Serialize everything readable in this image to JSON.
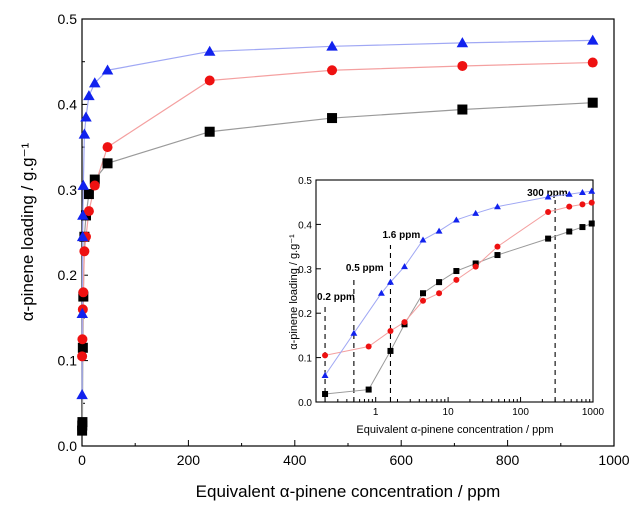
{
  "colors": {
    "black": "#000000",
    "red": "#ee1111",
    "blue": "#1122ee",
    "black_line": "#9a9a9a",
    "red_line": "#f4a0a0",
    "blue_line": "#a0a8f4"
  },
  "chart_data": [
    {
      "type": "scatter",
      "xlabel": "Equivalent α-pinene concentration / ppm",
      "ylabel": "α-pinene loading / g.g⁻¹",
      "xlim": [
        0,
        1000
      ],
      "ylim": [
        0,
        0.5
      ],
      "x_ticks": [
        "0",
        "200",
        "400",
        "600",
        "800",
        "1000"
      ],
      "y_ticks": [
        "0.0",
        "0.1",
        "0.2",
        "0.3",
        "0.4",
        "0.5"
      ],
      "series": [
        {
          "marker": "square",
          "color": "black",
          "x": [
            0.2,
            0.5,
            0.8,
            1.6,
            2.5,
            4.5,
            7.5,
            13,
            24,
            48,
            240,
            470,
            715,
            960
          ],
          "y": [
            0.018,
            0.024,
            0.028,
            0.115,
            0.175,
            0.245,
            0.27,
            0.295,
            0.312,
            0.331,
            0.368,
            0.384,
            0.394,
            0.402
          ]
        },
        {
          "marker": "circle",
          "color": "red",
          "x": [
            0.2,
            0.8,
            1.6,
            2.5,
            4.5,
            7.5,
            13,
            24,
            48,
            240,
            470,
            715,
            960
          ],
          "y": [
            0.105,
            0.125,
            0.16,
            0.18,
            0.228,
            0.245,
            0.275,
            0.305,
            0.35,
            0.428,
            0.44,
            0.445,
            0.449
          ]
        },
        {
          "marker": "triangle",
          "color": "blue",
          "x": [
            0.2,
            0.5,
            1.2,
            1.6,
            2.5,
            4.5,
            7.5,
            13,
            24,
            48,
            240,
            470,
            715,
            960
          ],
          "y": [
            0.06,
            0.155,
            0.245,
            0.27,
            0.305,
            0.365,
            0.385,
            0.41,
            0.425,
            0.44,
            0.462,
            0.468,
            0.472,
            0.475
          ]
        }
      ]
    },
    {
      "type": "scatter",
      "xscale": "log",
      "xlabel": "Equivalent α-pinene concentration / ppm",
      "ylabel": "α-pinene loading / g.g⁻¹",
      "xlim": [
        0.15,
        1000
      ],
      "ylim": [
        0,
        0.5
      ],
      "x_ticks": [
        "1",
        "10",
        "100",
        "1000"
      ],
      "y_ticks": [
        "0.0",
        "0.1",
        "0.2",
        "0.3",
        "0.4",
        "0.5"
      ],
      "series": [
        {
          "marker": "square",
          "color": "black",
          "x": [
            0.2,
            0.8,
            1.6,
            2.5,
            4.5,
            7.5,
            13,
            24,
            48,
            240,
            470,
            715,
            960
          ],
          "y": [
            0.018,
            0.028,
            0.115,
            0.175,
            0.245,
            0.27,
            0.295,
            0.312,
            0.331,
            0.368,
            0.384,
            0.394,
            0.402
          ]
        },
        {
          "marker": "circle",
          "color": "red",
          "x": [
            0.2,
            0.8,
            1.6,
            2.5,
            4.5,
            7.5,
            13,
            24,
            48,
            240,
            470,
            715,
            960
          ],
          "y": [
            0.105,
            0.125,
            0.16,
            0.18,
            0.228,
            0.245,
            0.275,
            0.305,
            0.35,
            0.428,
            0.44,
            0.445,
            0.449
          ]
        },
        {
          "marker": "triangle",
          "color": "blue",
          "x": [
            0.2,
            0.5,
            1.2,
            1.6,
            2.5,
            4.5,
            7.5,
            13,
            24,
            48,
            240,
            470,
            715,
            960
          ],
          "y": [
            0.06,
            0.155,
            0.245,
            0.27,
            0.305,
            0.365,
            0.385,
            0.41,
            0.425,
            0.44,
            0.462,
            0.468,
            0.472,
            0.475
          ]
        }
      ],
      "annotations": [
        {
          "x": 0.2,
          "label": "0.2 ppm"
        },
        {
          "x": 0.5,
          "label": "0.5 ppm"
        },
        {
          "x": 1.6,
          "label": "1.6 ppm"
        },
        {
          "x": 300,
          "label": "300 ppm"
        }
      ]
    }
  ]
}
